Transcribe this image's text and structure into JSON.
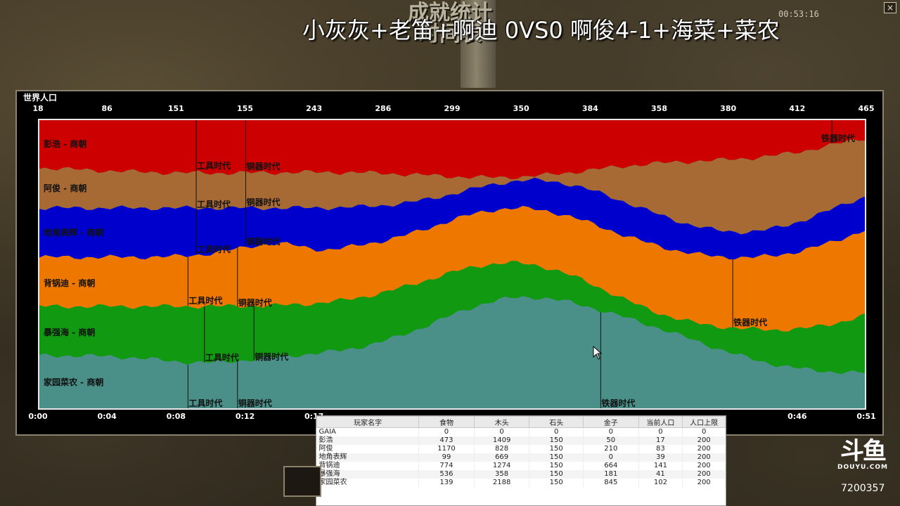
{
  "window": {
    "background_title": "成就统计\n时间表",
    "match_title": "小灰灰+老笛+啊迪 0VS0 啊俊4-1+海菜+菜农",
    "timer": "00:53:16",
    "close_label": "×"
  },
  "chart_data": {
    "type": "area",
    "title": "世界人口",
    "stacked": true,
    "top_labels": [
      "18",
      "86",
      "151",
      "155",
      "243",
      "286",
      "299",
      "350",
      "384",
      "358",
      "380",
      "412",
      "465"
    ],
    "x_ticks": [
      "0:00",
      "0:04",
      "0:08",
      "0:12",
      "0:17",
      "",
      "",
      "",
      "",
      "",
      "",
      "0:46",
      "0:51"
    ],
    "series": [
      {
        "name": "彭浩 - 商朝",
        "color": "#cc0000",
        "ages": [
          {
            "label": "工具时代",
            "t": 0.19
          },
          {
            "label": "铜器时代",
            "t": 0.25
          },
          {
            "label": "铁器时代",
            "t": 0.96
          }
        ]
      },
      {
        "name": "阿俊 - 商朝",
        "color": "#a86a35",
        "ages": [
          {
            "label": "工具时代",
            "t": 0.19
          },
          {
            "label": "铜器时代",
            "t": 0.25
          }
        ]
      },
      {
        "name": "地角表辉 - 商朝",
        "color": "#0000cc",
        "ages": [
          {
            "label": "工具时代",
            "t": 0.19
          },
          {
            "label": "铜器时代",
            "t": 0.25
          }
        ]
      },
      {
        "name": "背锅迪 - 商朝",
        "color": "#ee7700",
        "ages": [
          {
            "label": "工具时代",
            "t": 0.18
          },
          {
            "label": "铜器时代",
            "t": 0.24
          },
          {
            "label": "铁器时代",
            "t": 0.84
          }
        ]
      },
      {
        "name": "暴强海 - 商朝",
        "color": "#119911",
        "ages": [
          {
            "label": "工具时代",
            "t": 0.2
          },
          {
            "label": "铜器时代",
            "t": 0.26
          }
        ]
      },
      {
        "name": "家园菜农 - 商朝",
        "color": "#4a8f88",
        "ages": [
          {
            "label": "工具时代",
            "t": 0.18
          },
          {
            "label": "铜器时代",
            "t": 0.24
          },
          {
            "label": "铁器时代",
            "t": 0.68
          }
        ]
      }
    ]
  },
  "stats": {
    "headers": [
      "玩家名字",
      "食物",
      "木头",
      "石头",
      "金子",
      "当前人口",
      "人口上限"
    ],
    "rows": [
      [
        "GAIA",
        "0",
        "0",
        "0",
        "0",
        "0",
        "0"
      ],
      [
        "彭浩",
        "473",
        "1409",
        "150",
        "50",
        "17",
        "200"
      ],
      [
        "阿俊",
        "1170",
        "828",
        "150",
        "210",
        "83",
        "200"
      ],
      [
        "地角表辉",
        "99",
        "669",
        "150",
        "0",
        "39",
        "200"
      ],
      [
        "背锅迪",
        "774",
        "1274",
        "150",
        "664",
        "141",
        "200"
      ],
      [
        "暴强海",
        "536",
        "358",
        "150",
        "181",
        "41",
        "200"
      ],
      [
        "家园菜农",
        "139",
        "2188",
        "150",
        "845",
        "102",
        "200"
      ]
    ]
  },
  "branding": {
    "logo_mark": "斗鱼",
    "logo_sub": "DOUYU.COM",
    "room_id": "7200357"
  }
}
